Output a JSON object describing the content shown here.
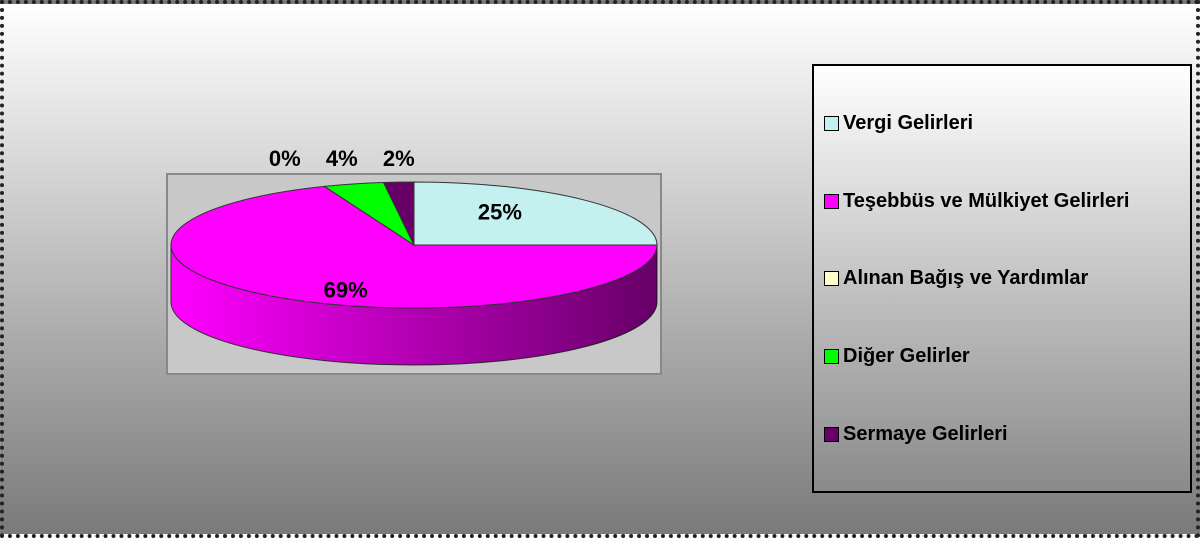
{
  "chart_data": {
    "type": "pie",
    "categories": [
      "Vergi Gelirleri",
      "Teşebbüs ve Mülkiyet Gelirleri",
      "Alınan Bağış ve Yardımlar",
      "Diğer Gelirler",
      "Sermaye Gelirleri"
    ],
    "values": [
      25,
      69,
      0,
      4,
      2
    ],
    "value_labels": [
      "25%",
      "69%",
      "0%",
      "4%",
      "2%"
    ],
    "colors": [
      "#c4f0f0",
      "#ff00ff",
      "#ffffcc",
      "#00ff00",
      "#660066"
    ],
    "legend": "right"
  }
}
